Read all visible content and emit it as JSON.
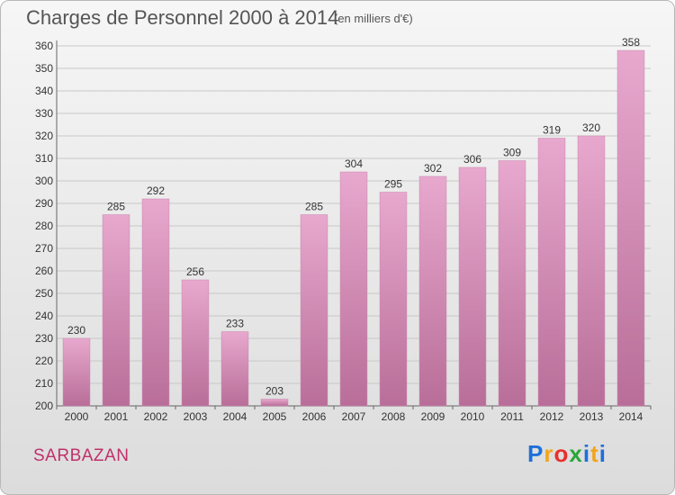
{
  "header": {
    "title": "Charges de Personnel 2000 à 2014",
    "subtitle": "(en milliers d'€)"
  },
  "footer": {
    "place": "SARBAZAN",
    "logo_text": "Proxiti",
    "logo_letters": [
      {
        "ch": "P",
        "color": "#1e6fd9"
      },
      {
        "ch": "r",
        "color": "#f2a51c"
      },
      {
        "ch": "o",
        "color": "#e8302a"
      },
      {
        "ch": "x",
        "color": "#2aa63a"
      },
      {
        "ch": "i",
        "color": "#1e6fd9"
      },
      {
        "ch": "t",
        "color": "#f2a51c"
      },
      {
        "ch": "i",
        "color": "#1e6fd9"
      }
    ]
  },
  "colors": {
    "bar_top": "#e8a8ce",
    "bar_bottom": "#b86e98",
    "grid": "#c8c8c8",
    "place": "#c0306a"
  },
  "chart_data": {
    "type": "bar",
    "title": "Charges de Personnel 2000 à 2014",
    "subtitle": "(en milliers d'€)",
    "categories": [
      "2000",
      "2001",
      "2002",
      "2003",
      "2004",
      "2005",
      "2006",
      "2007",
      "2008",
      "2009",
      "2010",
      "2011",
      "2012",
      "2013",
      "2014"
    ],
    "values": [
      230,
      285,
      292,
      256,
      233,
      203,
      285,
      304,
      295,
      302,
      306,
      309,
      319,
      320,
      358
    ],
    "ylim": [
      200,
      360
    ],
    "ytick_step": 10,
    "grid": true,
    "xlabel": "",
    "ylabel": ""
  }
}
